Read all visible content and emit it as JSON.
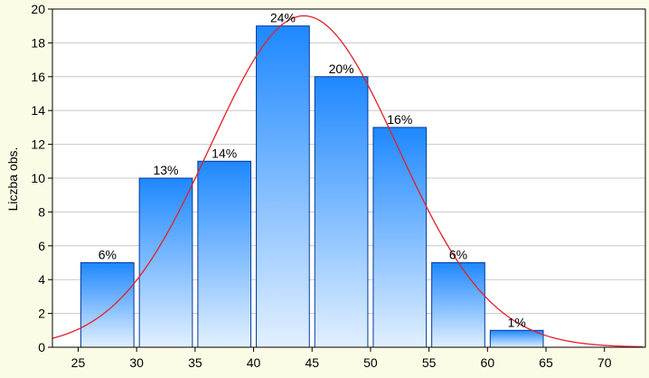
{
  "chart_data": {
    "type": "bar",
    "title": "",
    "xlabel": "",
    "ylabel": "Liczba obs.",
    "bins": [
      {
        "start": 25,
        "end": 30,
        "value": 5,
        "label": "6%"
      },
      {
        "start": 30,
        "end": 35,
        "value": 10,
        "label": "13%"
      },
      {
        "start": 35,
        "end": 40,
        "value": 11,
        "label": "14%"
      },
      {
        "start": 40,
        "end": 45,
        "value": 19,
        "label": "24%"
      },
      {
        "start": 45,
        "end": 50,
        "value": 16,
        "label": "20%"
      },
      {
        "start": 50,
        "end": 55,
        "value": 13,
        "label": "16%"
      },
      {
        "start": 55,
        "end": 60,
        "value": 5,
        "label": "6%"
      },
      {
        "start": 60,
        "end": 65,
        "value": 1,
        "label": "1%"
      }
    ],
    "x_ticks": [
      "25",
      "30",
      "35",
      "40",
      "45",
      "50",
      "55",
      "60",
      "65",
      "70"
    ],
    "x_tick_values": [
      25,
      30,
      35,
      40,
      45,
      50,
      55,
      60,
      65,
      70
    ],
    "y_ticks": [
      "0",
      "2",
      "4",
      "6",
      "8",
      "10",
      "12",
      "14",
      "16",
      "18",
      "20"
    ],
    "y_tick_values": [
      0,
      2,
      4,
      6,
      8,
      10,
      12,
      14,
      16,
      18,
      20
    ],
    "xlim": [
      22.8,
      73.5
    ],
    "ylim": [
      0,
      20
    ],
    "grid": "horizontal",
    "overlay_curve": {
      "type": "normal",
      "mean": 44.3,
      "sd": 8.0,
      "peak": 19.6,
      "color": "#e2202a"
    },
    "colors": {
      "background": "#fcfce6",
      "plot_background": "#ffffff",
      "bar_top": "#1e88ff",
      "bar_bottom": "#e2f0ff",
      "bar_edge": "#003a9a",
      "grid": "#c8c8c8",
      "axis": "#000000"
    }
  }
}
